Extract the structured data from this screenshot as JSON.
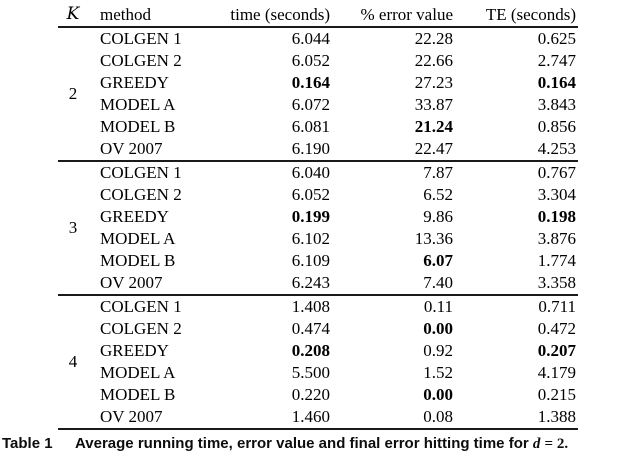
{
  "table": {
    "headers": {
      "k": "K",
      "method": "method",
      "time": "time (seconds)",
      "error": "% error value",
      "te": "TE (seconds)"
    },
    "groups": [
      {
        "k": "2",
        "rows": [
          {
            "method": "COLGEN 1",
            "time": "6.044",
            "error": "22.28",
            "te": "0.625"
          },
          {
            "method": "COLGEN 2",
            "time": "6.052",
            "error": "22.66",
            "te": "2.747"
          },
          {
            "method": "GREEDY",
            "time": "0.164",
            "error": "27.23",
            "te": "0.164",
            "bold": [
              "time",
              "te"
            ]
          },
          {
            "method": "MODEL A",
            "time": "6.072",
            "error": "33.87",
            "te": "3.843"
          },
          {
            "method": "MODEL B",
            "time": "6.081",
            "error": "21.24",
            "te": "0.856",
            "bold": [
              "error"
            ]
          },
          {
            "method": "OV 2007",
            "time": "6.190",
            "error": "22.47",
            "te": "4.253"
          }
        ]
      },
      {
        "k": "3",
        "rows": [
          {
            "method": "COLGEN 1",
            "time": "6.040",
            "error": "7.87",
            "te": "0.767"
          },
          {
            "method": "COLGEN 2",
            "time": "6.052",
            "error": "6.52",
            "te": "3.304"
          },
          {
            "method": "GREEDY",
            "time": "0.199",
            "error": "9.86",
            "te": "0.198",
            "bold": [
              "time",
              "te"
            ]
          },
          {
            "method": "MODEL A",
            "time": "6.102",
            "error": "13.36",
            "te": "3.876"
          },
          {
            "method": "MODEL B",
            "time": "6.109",
            "error": "6.07",
            "te": "1.774",
            "bold": [
              "error"
            ]
          },
          {
            "method": "OV 2007",
            "time": "6.243",
            "error": "7.40",
            "te": "3.358"
          }
        ]
      },
      {
        "k": "4",
        "rows": [
          {
            "method": "COLGEN 1",
            "time": "1.408",
            "error": "0.11",
            "te": "0.711"
          },
          {
            "method": "COLGEN 2",
            "time": "0.474",
            "error": "0.00",
            "te": "0.472",
            "bold": [
              "error"
            ]
          },
          {
            "method": "GREEDY",
            "time": "0.208",
            "error": "0.92",
            "te": "0.207",
            "bold": [
              "time",
              "te"
            ]
          },
          {
            "method": "MODEL A",
            "time": "5.500",
            "error": "1.52",
            "te": "4.179"
          },
          {
            "method": "MODEL B",
            "time": "0.220",
            "error": "0.00",
            "te": "0.215",
            "bold": [
              "error"
            ]
          },
          {
            "method": "OV 2007",
            "time": "1.460",
            "error": "0.08",
            "te": "1.388"
          }
        ]
      }
    ]
  },
  "caption": {
    "label": "Table 1",
    "text": "Average running time, error value and final error hitting time for",
    "var": "d",
    "equals": "= 2."
  }
}
